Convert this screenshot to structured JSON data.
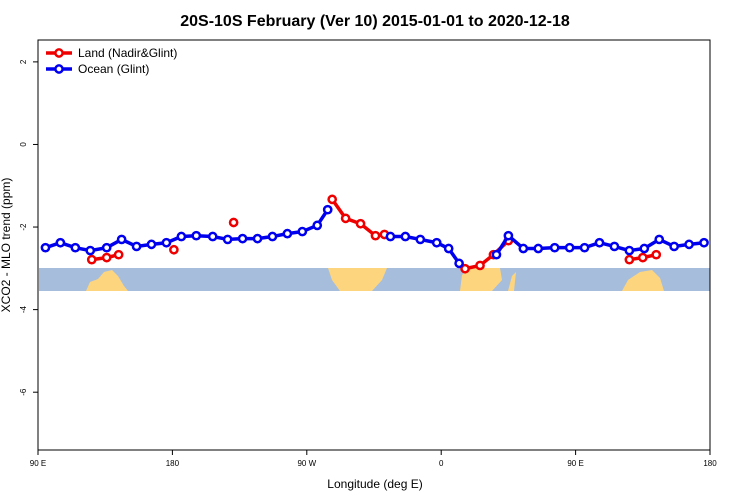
{
  "chart_data": {
    "type": "line",
    "title": "20S-10S February (Ver 10)   2015-01-01 to 2020-12-18",
    "x_label": "Longitude (deg E)",
    "y_label": "XCO2 - MLO trend (ppm)",
    "xlim": [
      90,
      540
    ],
    "ylim": [
      -7.4,
      2.53
    ],
    "xticks": [
      {
        "value": 90,
        "label": "90 E"
      },
      180,
      {
        "value": 270,
        "label": "90 W"
      },
      {
        "value": 360,
        "label": "0"
      },
      {
        "value": 450,
        "label": "90 E"
      },
      {
        "value": 540,
        "label": "180"
      }
    ],
    "yticks": [
      2,
      0,
      -2,
      -4,
      -6
    ],
    "legend": "top-left",
    "series": [
      {
        "name": "Land (Nadir&Glint)",
        "color": "#ee0000",
        "x": [
          126,
          136,
          144,
          160,
          181,
          200,
          221,
          250,
          287,
          296,
          306,
          316,
          322,
          350,
          376,
          386,
          395,
          405,
          450,
          486,
          495,
          504
        ],
        "values": [
          -2.79,
          -2.74,
          -2.67,
          null,
          -2.55,
          null,
          -1.89,
          null,
          -1.33,
          -1.79,
          -1.92,
          -2.21,
          -2.18,
          null,
          -3.01,
          -2.93,
          -2.67,
          -2.33,
          null,
          -2.79,
          -2.74,
          -2.67
        ]
      },
      {
        "name": "Ocean (Glint)",
        "color": "#0000ee",
        "x": [
          95,
          105,
          115,
          125,
          136,
          146,
          156,
          166,
          176,
          186,
          196,
          207,
          217,
          227,
          237,
          247,
          257,
          267,
          277,
          284,
          305,
          326,
          336,
          346,
          357,
          365,
          372,
          385,
          397,
          405,
          415,
          425,
          436,
          446,
          456,
          466,
          476,
          486,
          496,
          506,
          516,
          526,
          536
        ],
        "values": [
          -2.5,
          -2.38,
          -2.5,
          -2.57,
          -2.5,
          -2.3,
          -2.47,
          -2.42,
          -2.38,
          -2.23,
          -2.21,
          -2.23,
          -2.3,
          -2.28,
          -2.28,
          -2.23,
          -2.16,
          -2.11,
          -1.96,
          -1.58,
          null,
          -2.23,
          -2.23,
          -2.3,
          -2.38,
          -2.52,
          -2.88,
          null,
          -2.67,
          -2.21,
          -2.52,
          -2.52,
          -2.5,
          -2.5,
          -2.5,
          -2.38,
          -2.47,
          -2.57,
          -2.52,
          -2.3,
          -2.47,
          -2.42,
          -2.38
        ]
      }
    ]
  }
}
